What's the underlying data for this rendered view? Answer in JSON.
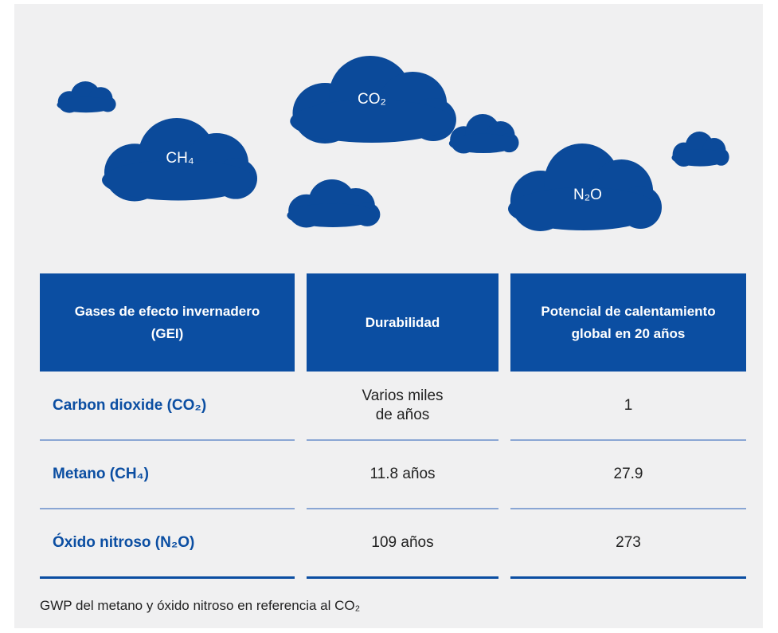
{
  "clouds": [
    "CO₂",
    "CH₄",
    "N₂O"
  ],
  "table": {
    "header": [
      "Gases de efecto invernadero (GEI)",
      "Durabilidad",
      "Potencial de calentamiento global en 20 años"
    ],
    "rows": [
      [
        "Carbon dioxide (CO₂)",
        "Varios miles de años",
        1
      ],
      [
        "Metano (CH₄)",
        "11.8 años",
        27.9
      ],
      [
        "Óxido nitroso (N₂O)",
        "109 años",
        273
      ]
    ]
  },
  "footnote": "GWP del metano y óxido nitroso en referencia al CO₂"
}
